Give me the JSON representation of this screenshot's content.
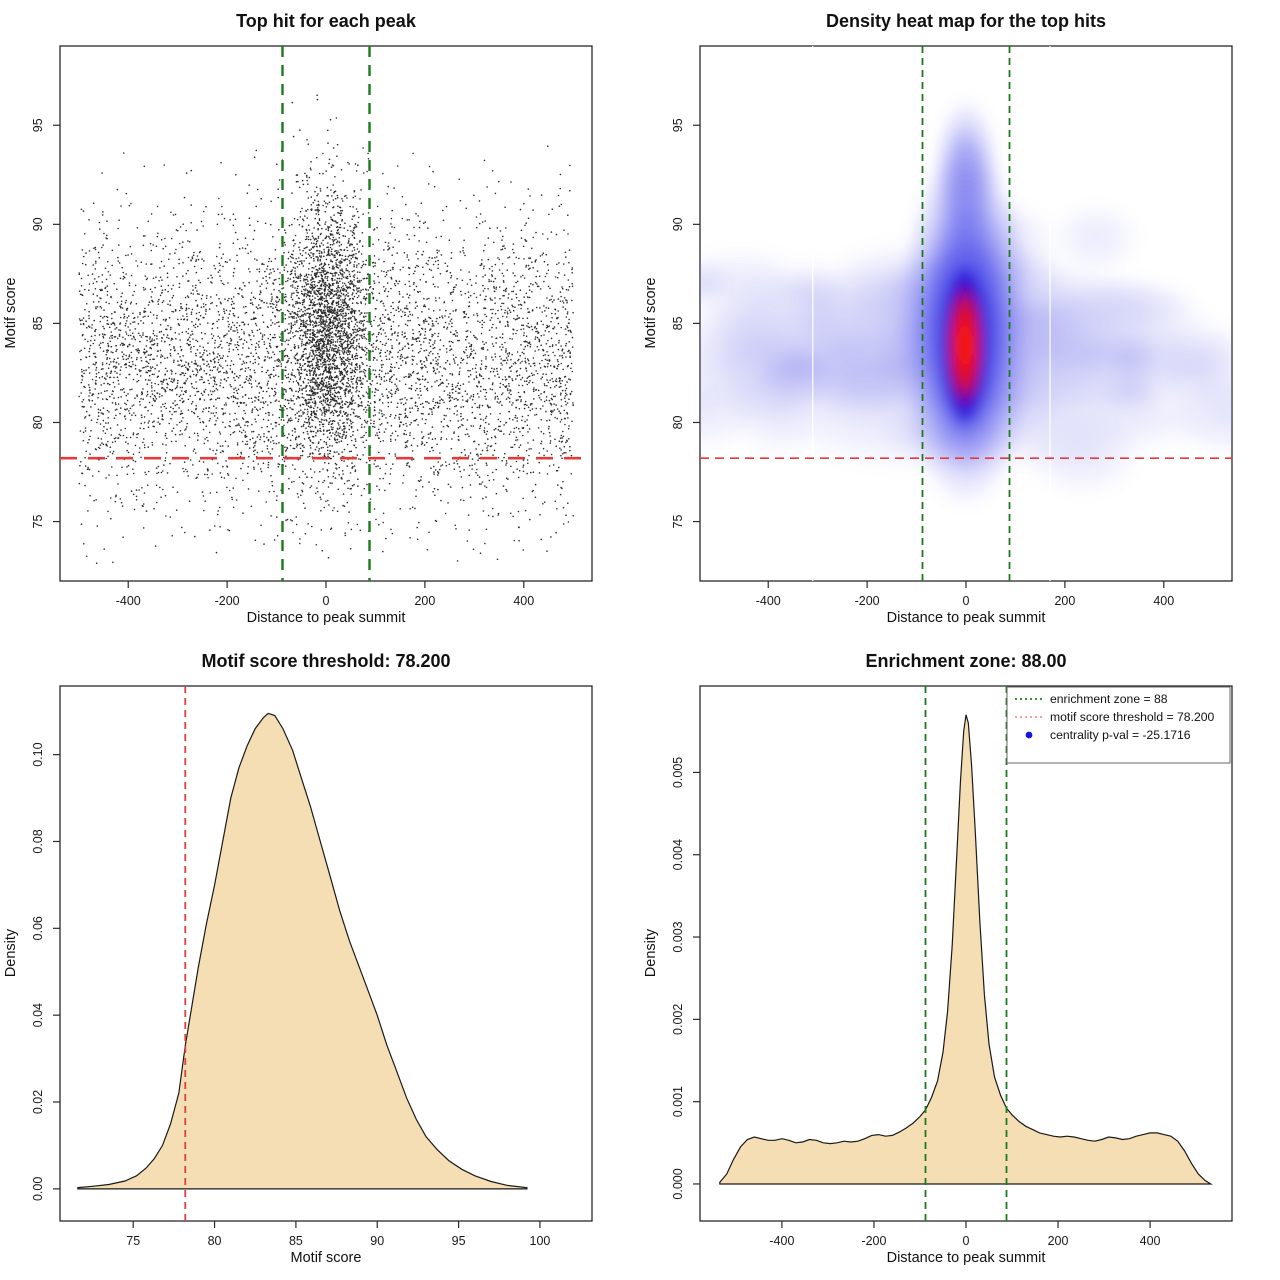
{
  "figure": {
    "background": "#ffffff"
  },
  "colors": {
    "zone_green": "#1b7a1b",
    "threshold_red": "#e23b3b",
    "density_red": "#d94040",
    "legend_red": "#f29191",
    "legend_blue": "#1515e0",
    "area_fill": "#f5deb3",
    "area_stroke": "#1a1a1a",
    "point_color": "#141414",
    "axis_color": "#2a2a2a",
    "heat_low": "#8888ee",
    "heat_mid": "#2020e0",
    "heat_high": "#ff1e00"
  },
  "chart_data": [
    {
      "key": "scatter",
      "type": "scatter",
      "title": "Top hit for each peak",
      "xlabel": "Distance to peak summit",
      "ylabel": "Motif score",
      "xlim": [
        -538,
        538
      ],
      "ylim": [
        72,
        99
      ],
      "xticks": [
        -400,
        -200,
        0,
        200,
        400
      ],
      "xtick_labels": [
        "-400",
        "-200",
        "0",
        "200",
        "400"
      ],
      "yticks": [
        75,
        80,
        85,
        90,
        95
      ],
      "ytick_labels": [
        "75",
        "80",
        "85",
        "90",
        "95"
      ],
      "enrichment_zone_x": [
        -88,
        88
      ],
      "score_threshold_y": 78.2,
      "seed": 42,
      "clusters": [
        {
          "n": 5200,
          "x": {
            "dist": "uniform",
            "range": [
              -500,
              500
            ]
          },
          "y": {
            "dist": "normal",
            "mean": 83.0,
            "sd": 3.6,
            "clip": [
              72.8,
              95.6
            ]
          }
        },
        {
          "n": 2400,
          "x": {
            "dist": "normal",
            "mean": 4,
            "sd": 40,
            "clip": [
              -175,
              175
            ]
          },
          "y": {
            "dist": "normal",
            "mean": 84.8,
            "sd": 3.4,
            "clip": [
              73.0,
              97.6
            ]
          }
        }
      ]
    },
    {
      "key": "heatmap",
      "type": "heatmap",
      "title": "Density heat map for the top hits",
      "xlabel": "Distance to peak summit",
      "ylabel": "Motif score",
      "xlim": [
        -538,
        538
      ],
      "ylim": [
        72,
        99
      ],
      "xticks": [
        -400,
        -200,
        0,
        200,
        400
      ],
      "xtick_labels": [
        "-400",
        "-200",
        "0",
        "200",
        "400"
      ],
      "yticks": [
        75,
        80,
        85,
        90,
        95
      ],
      "ytick_labels": [
        "75",
        "80",
        "85",
        "90",
        "95"
      ],
      "enrichment_zone_x": [
        -88,
        88
      ],
      "score_threshold_y": 78.2,
      "hotspot": {
        "x": 0,
        "y": 84
      },
      "band_y": [
        79,
        87
      ],
      "seam_lines_x": [
        -310,
        170
      ],
      "seed": 11,
      "n_noise_blobs": 46
    },
    {
      "key": "score_density",
      "type": "area",
      "title": "Motif score threshold: 78.200",
      "xlabel": "Motif score",
      "ylabel": "Density",
      "xlim": [
        70.5,
        103.2
      ],
      "ylim": [
        -0.0074,
        0.1158
      ],
      "xticks": [
        75,
        80,
        85,
        90,
        95,
        100
      ],
      "xtick_labels": [
        "75",
        "80",
        "85",
        "90",
        "95",
        "100"
      ],
      "yticks": [
        0,
        0.02,
        0.04,
        0.06,
        0.08,
        0.1
      ],
      "ytick_labels": [
        "0.00",
        "0.02",
        "0.04",
        "0.06",
        "0.08",
        "0.10"
      ],
      "threshold_x": 78.2,
      "curve": [
        [
          71.6,
          0.0003
        ],
        [
          72.5,
          0.0006
        ],
        [
          73.5,
          0.001
        ],
        [
          74.5,
          0.0018
        ],
        [
          75.2,
          0.003
        ],
        [
          75.8,
          0.0048
        ],
        [
          76.3,
          0.007
        ],
        [
          76.8,
          0.01
        ],
        [
          77.3,
          0.015
        ],
        [
          77.8,
          0.022
        ],
        [
          78.2,
          0.033
        ],
        [
          78.6,
          0.042
        ],
        [
          79.0,
          0.051
        ],
        [
          79.5,
          0.061
        ],
        [
          80.0,
          0.07
        ],
        [
          80.5,
          0.08
        ],
        [
          81.0,
          0.09
        ],
        [
          81.5,
          0.097
        ],
        [
          82.0,
          0.102
        ],
        [
          82.5,
          0.106
        ],
        [
          83.0,
          0.1085
        ],
        [
          83.3,
          0.1095
        ],
        [
          83.7,
          0.109
        ],
        [
          84.2,
          0.106
        ],
        [
          84.8,
          0.101
        ],
        [
          85.3,
          0.095
        ],
        [
          85.9,
          0.088
        ],
        [
          86.5,
          0.08
        ],
        [
          87.1,
          0.072
        ],
        [
          87.7,
          0.064
        ],
        [
          88.3,
          0.057
        ],
        [
          88.9,
          0.051
        ],
        [
          89.4,
          0.046
        ],
        [
          90.0,
          0.04
        ],
        [
          90.6,
          0.033
        ],
        [
          91.2,
          0.027
        ],
        [
          91.8,
          0.021
        ],
        [
          92.4,
          0.016
        ],
        [
          93.0,
          0.012
        ],
        [
          93.7,
          0.009
        ],
        [
          94.4,
          0.0065
        ],
        [
          95.2,
          0.0045
        ],
        [
          96.0,
          0.003
        ],
        [
          97.0,
          0.0017
        ],
        [
          98.0,
          0.0008
        ],
        [
          99.2,
          0.0003
        ]
      ]
    },
    {
      "key": "distance_density",
      "type": "area",
      "title": "Enrichment zone: 88.00",
      "xlabel": "Distance to peak summit",
      "ylabel": "Density",
      "xlim": [
        -578,
        578
      ],
      "ylim": [
        -0.00045,
        0.00605
      ],
      "xticks": [
        -400,
        -200,
        0,
        200,
        400
      ],
      "xtick_labels": [
        "-400",
        "-200",
        "0",
        "200",
        "400"
      ],
      "yticks": [
        0,
        0.001,
        0.002,
        0.003,
        0.004,
        0.005
      ],
      "ytick_labels": [
        "0.000",
        "0.001",
        "0.002",
        "0.003",
        "0.004",
        "0.005"
      ],
      "zone_x": [
        -88,
        88
      ],
      "legend": [
        {
          "swatch": "dotted-line",
          "color": "#1e7d1e",
          "label": "enrichment zone = 88"
        },
        {
          "swatch": "dotted-line",
          "color": "#f29191",
          "label": "motif score threshold = 78.200"
        },
        {
          "swatch": "dot",
          "color": "#1515e0",
          "label": "centrality p-val = -25.1716"
        }
      ],
      "curve": [
        [
          -535,
          2e-05
        ],
        [
          -520,
          0.00012
        ],
        [
          -505,
          0.0003
        ],
        [
          -490,
          0.00045
        ],
        [
          -475,
          0.00054
        ],
        [
          -460,
          0.00057
        ],
        [
          -445,
          0.00055
        ],
        [
          -430,
          0.00053
        ],
        [
          -415,
          0.00053
        ],
        [
          -400,
          0.00055
        ],
        [
          -385,
          0.00053
        ],
        [
          -370,
          0.0005
        ],
        [
          -355,
          0.00051
        ],
        [
          -340,
          0.00054
        ],
        [
          -325,
          0.00053
        ],
        [
          -310,
          0.0005
        ],
        [
          -295,
          0.00049
        ],
        [
          -280,
          0.0005
        ],
        [
          -265,
          0.00052
        ],
        [
          -250,
          0.00051
        ],
        [
          -235,
          0.00052
        ],
        [
          -220,
          0.00055
        ],
        [
          -205,
          0.00059
        ],
        [
          -190,
          0.0006
        ],
        [
          -175,
          0.00058
        ],
        [
          -160,
          0.00059
        ],
        [
          -145,
          0.00063
        ],
        [
          -130,
          0.00068
        ],
        [
          -115,
          0.00074
        ],
        [
          -100,
          0.00082
        ],
        [
          -88,
          0.0009
        ],
        [
          -75,
          0.00105
        ],
        [
          -62,
          0.00125
        ],
        [
          -50,
          0.0016
        ],
        [
          -40,
          0.0021
        ],
        [
          -30,
          0.0029
        ],
        [
          -20,
          0.004
        ],
        [
          -12,
          0.0049
        ],
        [
          -5,
          0.0055
        ],
        [
          0,
          0.0057
        ],
        [
          5,
          0.0056
        ],
        [
          12,
          0.0051
        ],
        [
          20,
          0.0043
        ],
        [
          30,
          0.0032
        ],
        [
          40,
          0.0023
        ],
        [
          50,
          0.0017
        ],
        [
          62,
          0.0013
        ],
        [
          75,
          0.00108
        ],
        [
          88,
          0.00092
        ],
        [
          100,
          0.00084
        ],
        [
          115,
          0.00076
        ],
        [
          130,
          0.0007
        ],
        [
          145,
          0.00066
        ],
        [
          160,
          0.00062
        ],
        [
          175,
          0.0006
        ],
        [
          190,
          0.00058
        ],
        [
          205,
          0.00057
        ],
        [
          220,
          0.00058
        ],
        [
          235,
          0.00057
        ],
        [
          250,
          0.00055
        ],
        [
          265,
          0.00053
        ],
        [
          280,
          0.00052
        ],
        [
          295,
          0.00054
        ],
        [
          310,
          0.00057
        ],
        [
          325,
          0.00056
        ],
        [
          340,
          0.00054
        ],
        [
          355,
          0.00055
        ],
        [
          370,
          0.00058
        ],
        [
          385,
          0.0006
        ],
        [
          400,
          0.00062
        ],
        [
          415,
          0.00062
        ],
        [
          430,
          0.0006
        ],
        [
          445,
          0.00058
        ],
        [
          460,
          0.00052
        ],
        [
          475,
          0.0004
        ],
        [
          490,
          0.00025
        ],
        [
          505,
          0.00012
        ],
        [
          520,
          4e-05
        ],
        [
          532,
          0
        ]
      ]
    }
  ]
}
